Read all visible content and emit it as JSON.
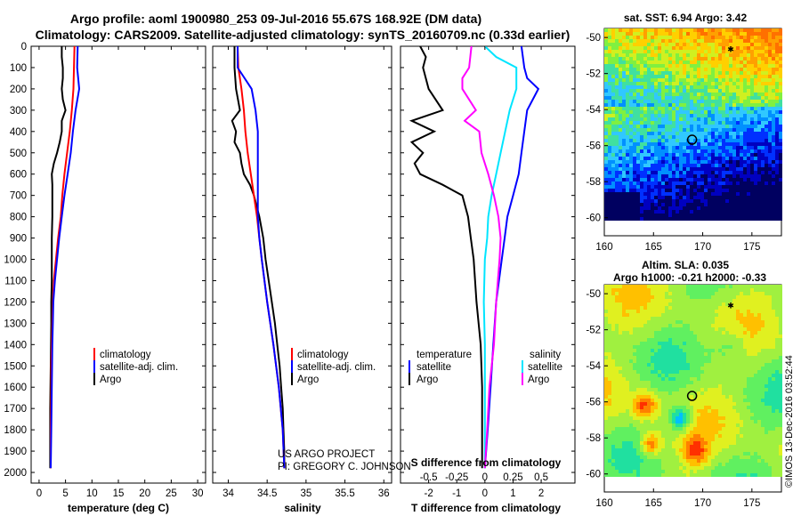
{
  "header": {
    "title_line1": "Argo profile: aoml 1900980_253 09-Jul-2016 55.67S 168.92E (DM data)",
    "title_line2": "Climatology: CARS2009. Satellite-adjusted climatology: synTS_20160709.nc (0.33d earlier)"
  },
  "colors": {
    "argo": "#000000",
    "climatology": "#ff0000",
    "satellite": "#0000ff",
    "s_satellite": "#00e5ff",
    "s_argo": "#ff00ff"
  },
  "depth_axis": {
    "label": "",
    "ticks": [
      "0",
      "100",
      "200",
      "300",
      "400",
      "500",
      "600",
      "700",
      "800",
      "900",
      "1000",
      "1100",
      "1200",
      "1300",
      "1400",
      "1500",
      "1600",
      "1700",
      "1800",
      "1900",
      "2000"
    ]
  },
  "chart_data": [
    {
      "type": "line",
      "name": "temperature",
      "xlabel": "temperature (deg C)",
      "xlim": [
        -1.5,
        31.5
      ],
      "ylim": [
        2050,
        0
      ],
      "xticks": [
        "0",
        "5",
        "10",
        "15",
        "20",
        "25",
        "30"
      ],
      "legend": [
        "climatology",
        "satellite-adj. clim.",
        "Argo"
      ],
      "series": [
        {
          "name": "Argo",
          "color": "#000000",
          "depth": [
            0,
            50,
            100,
            150,
            200,
            250,
            300,
            350,
            400,
            450,
            500,
            550,
            600,
            650,
            700,
            800,
            900,
            1000,
            1100,
            1200,
            1300,
            1500,
            1700,
            1900,
            1980
          ],
          "values": [
            4.3,
            4.3,
            4.5,
            4.5,
            4.3,
            4.5,
            5.0,
            4.3,
            4.3,
            3.9,
            3.4,
            2.8,
            2.4,
            2.5,
            2.5,
            2.5,
            2.4,
            2.4,
            2.4,
            2.3,
            2.3,
            2.2,
            2.1,
            2.1,
            2.1
          ]
        },
        {
          "name": "climatology",
          "color": "#ff0000",
          "depth": [
            0,
            100,
            200,
            300,
            400,
            500,
            600,
            700,
            800,
            900,
            1000,
            1100,
            1200,
            1300,
            1400,
            1500,
            1600,
            1800,
            1980
          ],
          "values": [
            6.7,
            6.6,
            6.5,
            6.2,
            5.8,
            5.3,
            4.8,
            4.4,
            4.1,
            3.6,
            3.2,
            2.8,
            2.6,
            2.5,
            2.4,
            2.3,
            2.3,
            2.2,
            2.2
          ]
        },
        {
          "name": "satellite-adj. clim.",
          "color": "#0000ff",
          "depth": [
            0,
            100,
            200,
            300,
            400,
            500,
            600,
            700,
            800,
            900,
            1000,
            1100,
            1200,
            1300,
            1400,
            1600,
            1800,
            1980
          ],
          "values": [
            7.3,
            7.2,
            7.6,
            6.9,
            6.4,
            6.0,
            5.4,
            4.8,
            4.3,
            3.8,
            3.4,
            3.0,
            2.7,
            2.6,
            2.5,
            2.4,
            2.3,
            2.2
          ]
        }
      ]
    },
    {
      "type": "line",
      "name": "salinity",
      "xlabel": "salinity",
      "xlim": [
        33.8,
        36.1
      ],
      "ylim": [
        2050,
        0
      ],
      "xticks": [
        "34",
        "34.5",
        "35",
        "35.5",
        "36"
      ],
      "legend": [
        "climatology",
        "satellite-adj. clim.",
        "Argo"
      ],
      "series": [
        {
          "name": "Argo",
          "color": "#000000",
          "depth": [
            0,
            100,
            200,
            300,
            350,
            400,
            450,
            500,
            550,
            600,
            650,
            700,
            800,
            900,
            1000,
            1100,
            1200,
            1300,
            1400,
            1500,
            1600,
            1700,
            1800,
            1900,
            1980
          ],
          "values": [
            34.08,
            34.08,
            34.1,
            34.15,
            34.05,
            34.1,
            34.08,
            34.15,
            34.17,
            34.2,
            34.28,
            34.33,
            34.4,
            34.45,
            34.48,
            34.52,
            34.56,
            34.6,
            34.63,
            34.66,
            34.68,
            34.7,
            34.71,
            34.72,
            34.72
          ]
        },
        {
          "name": "climatology",
          "color": "#ff0000",
          "depth": [
            0,
            100,
            200,
            300,
            400,
            500,
            600,
            700,
            800,
            900,
            1000,
            1200,
            1400,
            1600,
            1800,
            1980
          ],
          "values": [
            34.12,
            34.13,
            34.17,
            34.2,
            34.22,
            34.25,
            34.29,
            34.33,
            34.37,
            34.4,
            34.43,
            34.5,
            34.58,
            34.65,
            34.7,
            34.72
          ]
        },
        {
          "name": "satellite-adj. clim.",
          "color": "#0000ff",
          "depth": [
            0,
            100,
            200,
            300,
            400,
            500,
            600,
            700,
            800,
            900,
            1000,
            1200,
            1400,
            1600,
            1800,
            1980
          ],
          "values": [
            34.12,
            34.12,
            34.3,
            34.35,
            34.38,
            34.38,
            34.38,
            34.38,
            34.38,
            34.4,
            34.43,
            34.5,
            34.58,
            34.65,
            34.7,
            34.72
          ]
        }
      ]
    },
    {
      "type": "line",
      "name": "difference from climatology",
      "xlabel": "T difference from climatology",
      "xlabel_top": "S difference from climatology",
      "xlim": [
        -3,
        3.2
      ],
      "ylim": [
        2050,
        0
      ],
      "xticks": [
        "-2",
        "-1",
        "0",
        "1",
        "2"
      ],
      "xticks_top": [
        "-0.5",
        "-0.25",
        "0",
        "0.25",
        "0.5"
      ],
      "legend_t": {
        "header": "temperature",
        "items": [
          "satellite",
          "Argo"
        ]
      },
      "legend_s": {
        "header": "salinity",
        "items": [
          "satellite",
          "Argo"
        ]
      },
      "series": [
        {
          "name": "T Argo",
          "color": "#000000",
          "depth": [
            0,
            50,
            100,
            200,
            300,
            350,
            400,
            450,
            500,
            550,
            600,
            650,
            700,
            800,
            900,
            1000,
            1200,
            1400,
            1600,
            1800,
            1980
          ],
          "values": [
            -2.3,
            -2.1,
            -2.2,
            -2.0,
            -1.5,
            -2.6,
            -1.8,
            -2.6,
            -2.2,
            -2.5,
            -2.3,
            -1.5,
            -0.8,
            -0.6,
            -0.5,
            -0.4,
            -0.3,
            -0.15,
            -0.1,
            -0.1,
            -0.1
          ]
        },
        {
          "name": "T satellite",
          "color": "#0000ff",
          "depth": [
            0,
            100,
            150,
            200,
            300,
            400,
            500,
            600,
            700,
            800,
            900,
            1000,
            1200,
            1400,
            1600,
            1800,
            1980
          ],
          "values": [
            1.3,
            1.4,
            1.5,
            1.9,
            1.5,
            1.4,
            1.3,
            1.2,
            1.0,
            0.8,
            0.7,
            0.6,
            0.4,
            0.3,
            0.2,
            0.1,
            0.0
          ]
        },
        {
          "name": "S satellite",
          "color": "#00e5ff",
          "depth": [
            0,
            50,
            100,
            200,
            300,
            400,
            500,
            600,
            700,
            800,
            900,
            1000,
            1200,
            1400,
            1600,
            1800,
            1980
          ],
          "values": [
            0,
            0.1,
            0.28,
            0.28,
            0.22,
            0.18,
            0.14,
            0.1,
            0.06,
            0.03,
            0.02,
            0.0,
            -0.01,
            0.0,
            0.0,
            0.0,
            0.0
          ]
        },
        {
          "name": "S Argo",
          "color": "#ff00ff",
          "depth": [
            0,
            100,
            150,
            200,
            300,
            350,
            400,
            500,
            600,
            700,
            800,
            900,
            1000,
            1200,
            1400,
            1600,
            1800,
            1980
          ],
          "values": [
            -0.12,
            -0.14,
            -0.2,
            -0.2,
            -0.08,
            -0.18,
            -0.05,
            -0.03,
            0.03,
            0.08,
            0.12,
            0.14,
            0.13,
            0.1,
            0.08,
            0.04,
            0.02,
            0.0
          ]
        }
      ]
    },
    {
      "type": "heatmap",
      "name": "SST map",
      "title": "sat. SST: 6.94 Argo: 3.42",
      "xlim": [
        160,
        178
      ],
      "ylim": [
        -61,
        -49.5
      ],
      "xticks": [
        "160",
        "165",
        "170",
        "175"
      ],
      "yticks": [
        "-50",
        "-52",
        "-54",
        "-56",
        "-58",
        "-60"
      ],
      "float_position": {
        "lon": 168.92,
        "lat": -55.67
      }
    },
    {
      "type": "heatmap",
      "name": "SLA map",
      "title": "Altim. SLA: 0.035",
      "subtitle": "Argo h1000: -0.21 h2000: -0.33",
      "xlim": [
        160,
        178
      ],
      "ylim": [
        -61,
        -49.5
      ],
      "xticks": [
        "160",
        "165",
        "170",
        "175"
      ],
      "yticks": [
        "-50",
        "-52",
        "-54",
        "-56",
        "-58",
        "-60"
      ],
      "float_position": {
        "lon": 168.92,
        "lat": -55.67
      }
    }
  ],
  "footer": {
    "project_line1": "US ARGO PROJECT",
    "project_line2": "PI: GREGORY C. JOHNSON",
    "stamp": "©IMOS 13-Dec-2016 03:52:44"
  }
}
